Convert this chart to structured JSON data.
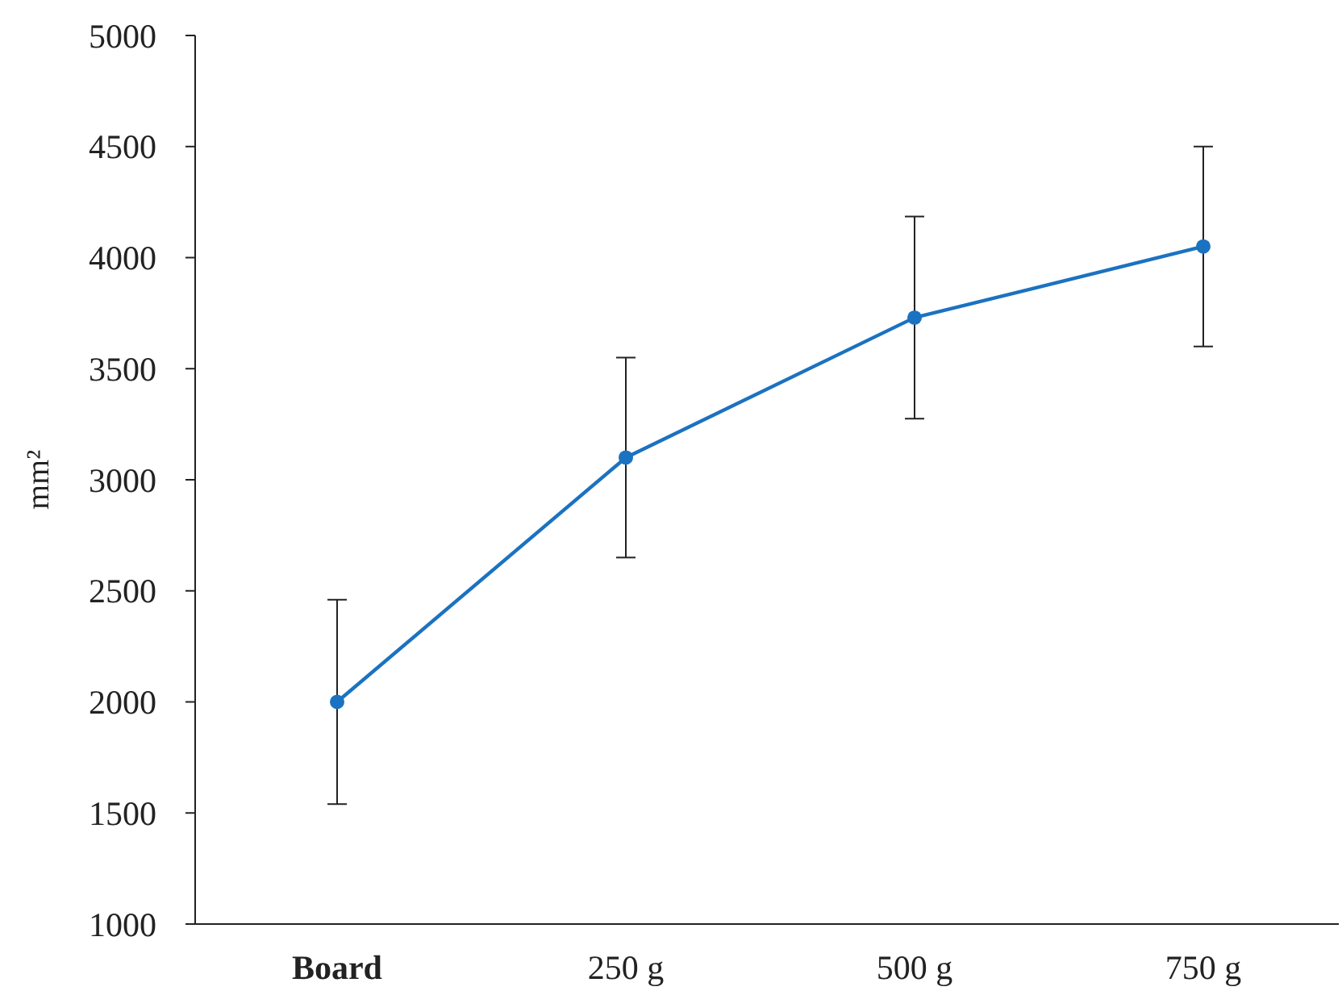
{
  "chart_data": {
    "type": "line",
    "ylabel": "mm²",
    "categories": [
      "Board",
      "250 g",
      "500 g",
      "750 g"
    ],
    "series": [
      {
        "color": "#1b72c0",
        "values": [
          2000,
          3100,
          3730,
          4050
        ],
        "errors": [
          460,
          450,
          455,
          450
        ]
      }
    ],
    "ylim": [
      1000,
      5000
    ],
    "yticks": [
      1000,
      1500,
      2000,
      2500,
      3000,
      3500,
      4000,
      4500,
      5000
    ],
    "marker": "circle",
    "grid": false
  }
}
